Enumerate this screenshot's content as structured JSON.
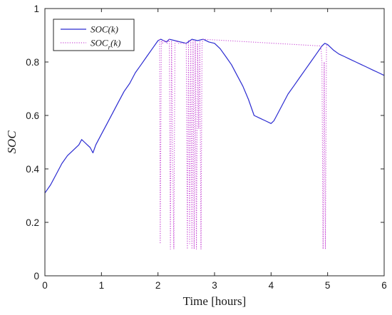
{
  "chart_data": {
    "type": "line",
    "xlabel": "Time [hours]",
    "ylabel": "SOC",
    "xlim": [
      0,
      6
    ],
    "ylim": [
      0,
      1
    ],
    "xticks": [
      0,
      1,
      2,
      3,
      4,
      5,
      6
    ],
    "yticks": [
      0,
      0.2,
      0.4,
      0.6,
      0.8,
      1
    ],
    "ytick_labels": [
      "0",
      "0.2",
      "0.4",
      "0.6",
      "0.8",
      "1"
    ],
    "grid": false,
    "legend_position": "top-left",
    "series": [
      {
        "name": "SOC(k)",
        "legend_label": "SOC(k)",
        "color": "#2b2bd1",
        "style": "solid",
        "x": [
          0,
          0.1,
          0.2,
          0.3,
          0.4,
          0.5,
          0.6,
          0.65,
          0.7,
          0.75,
          0.8,
          0.85,
          0.9,
          1.0,
          1.1,
          1.2,
          1.3,
          1.4,
          1.5,
          1.6,
          1.7,
          1.8,
          1.9,
          2.0,
          2.05,
          2.1,
          2.15,
          2.2,
          2.3,
          2.4,
          2.5,
          2.6,
          2.7,
          2.8,
          2.9,
          3.0,
          3.1,
          3.2,
          3.3,
          3.4,
          3.5,
          3.6,
          3.7,
          3.8,
          3.9,
          4.0,
          4.05,
          4.1,
          4.2,
          4.3,
          4.4,
          4.5,
          4.6,
          4.7,
          4.8,
          4.9,
          4.95,
          5.0,
          5.1,
          5.2,
          5.3,
          5.4,
          5.5,
          5.6,
          5.7,
          5.8,
          5.9,
          6.0
        ],
        "values": [
          0.31,
          0.34,
          0.38,
          0.42,
          0.45,
          0.47,
          0.49,
          0.51,
          0.5,
          0.49,
          0.48,
          0.46,
          0.49,
          0.53,
          0.57,
          0.61,
          0.65,
          0.69,
          0.72,
          0.76,
          0.79,
          0.82,
          0.85,
          0.88,
          0.885,
          0.88,
          0.875,
          0.885,
          0.88,
          0.875,
          0.87,
          0.885,
          0.88,
          0.885,
          0.875,
          0.87,
          0.85,
          0.82,
          0.79,
          0.75,
          0.71,
          0.66,
          0.6,
          0.59,
          0.58,
          0.57,
          0.58,
          0.6,
          0.64,
          0.68,
          0.71,
          0.74,
          0.77,
          0.8,
          0.83,
          0.86,
          0.87,
          0.865,
          0.845,
          0.83,
          0.82,
          0.81,
          0.8,
          0.79,
          0.78,
          0.77,
          0.76,
          0.75
        ]
      },
      {
        "name": "SOC_r(k)",
        "legend_label": "SOC_r(k)",
        "color": "#c94fd6",
        "style": "dotted",
        "x": [
          0,
          2.03,
          2.04,
          2.06,
          2.08,
          2.1,
          2.12,
          2.14,
          2.16,
          2.2,
          2.22,
          2.24,
          2.26,
          2.28,
          2.3,
          2.32,
          2.34,
          2.36,
          2.5,
          2.52,
          2.54,
          2.56,
          2.58,
          2.6,
          2.62,
          2.64,
          2.66,
          2.68,
          2.7,
          2.72,
          2.74,
          2.76,
          2.78,
          2.8,
          4.88,
          4.9,
          4.92,
          4.94,
          4.96,
          4.98,
          5.0,
          6.0
        ],
        "values": [
          null,
          0.885,
          0.12,
          0.88,
          0.87,
          0.88,
          0.875,
          0.88,
          0.87,
          0.885,
          0.1,
          0.88,
          0.45,
          0.1,
          0.87,
          0.88,
          0.875,
          0.87,
          0.87,
          0.1,
          0.88,
          0.12,
          0.88,
          0.1,
          0.88,
          0.1,
          0.88,
          0.1,
          0.87,
          0.55,
          0.88,
          0.1,
          0.87,
          0.885,
          0.86,
          0.8,
          0.1,
          0.8,
          0.1,
          0.86,
          0.865,
          null
        ]
      }
    ]
  }
}
